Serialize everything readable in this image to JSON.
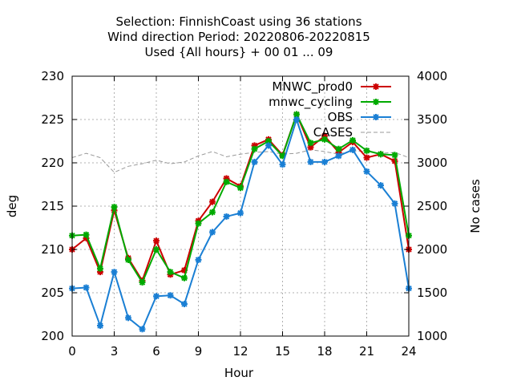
{
  "chart_data": {
    "type": "line",
    "title_lines": [
      "Selection: FinnishCoast using    36 stations",
      "Wind direction   Period: 20220806-20220815",
      "Used {All hours} + 00 01 ... 09"
    ],
    "xlabel": "Hour",
    "ylabel": "deg",
    "y2label": "No cases",
    "xlim": [
      0,
      24
    ],
    "ylim": [
      200,
      230
    ],
    "y2lim": [
      1000,
      4000
    ],
    "xticks": [
      "0",
      "3",
      "6",
      "9",
      "12",
      "15",
      "18",
      "21",
      "24"
    ],
    "yticks": [
      "200",
      "205",
      "210",
      "215",
      "220",
      "225",
      "230"
    ],
    "y2ticks": [
      "1000",
      "1500",
      "2000",
      "2500",
      "3000",
      "3500",
      "4000"
    ],
    "grid": true,
    "legend_position": "top-right",
    "x": [
      0,
      1,
      2,
      3,
      4,
      5,
      6,
      7,
      8,
      9,
      10,
      11,
      12,
      13,
      14,
      15,
      16,
      17,
      18,
      19,
      20,
      21,
      22,
      23,
      24
    ],
    "series": [
      {
        "name": "MNWC_prod0",
        "color": "#cc0000",
        "marker": "star",
        "axis": "left",
        "values": [
          210.0,
          211.3,
          207.4,
          214.5,
          209.0,
          206.4,
          211.0,
          207.1,
          207.6,
          213.3,
          215.5,
          218.2,
          217.3,
          222.0,
          222.7,
          220.9,
          225.6,
          221.8,
          223.1,
          221.2,
          222.4,
          220.6,
          221.0,
          220.2,
          210.0
        ]
      },
      {
        "name": "mnwc_cycling",
        "color": "#00aa00",
        "marker": "star",
        "axis": "left",
        "values": [
          211.6,
          211.7,
          207.8,
          214.9,
          208.8,
          206.2,
          210.0,
          207.4,
          206.7,
          213.0,
          214.3,
          217.8,
          217.1,
          221.6,
          222.5,
          220.8,
          225.6,
          222.3,
          222.7,
          221.6,
          222.6,
          221.4,
          221.0,
          220.9,
          211.6
        ]
      },
      {
        "name": "OBS",
        "color": "#1a7fd4",
        "marker": "star",
        "axis": "left",
        "values": [
          205.5,
          205.6,
          201.2,
          207.4,
          202.1,
          200.8,
          204.6,
          204.7,
          203.7,
          208.8,
          212.0,
          213.8,
          214.2,
          220.1,
          222.0,
          219.8,
          225.0,
          220.1,
          220.1,
          220.8,
          221.5,
          219.0,
          217.4,
          215.3,
          205.5
        ]
      },
      {
        "name": "CASES",
        "color": "#999999",
        "marker": "none",
        "dashed": true,
        "axis": "right",
        "values": [
          3060,
          3110,
          3060,
          2890,
          2960,
          2990,
          3030,
          2990,
          3010,
          3080,
          3130,
          3070,
          3100,
          3120,
          3130,
          3100,
          3110,
          3150,
          3130,
          3100,
          3140,
          3130,
          3110,
          3120,
          3060
        ]
      }
    ]
  }
}
